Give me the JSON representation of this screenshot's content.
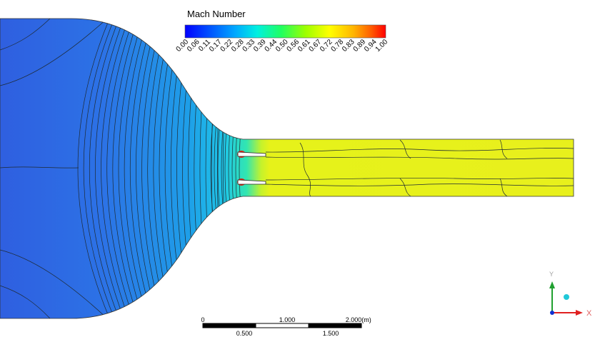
{
  "legend": {
    "title": "Mach Number",
    "ticks": [
      "0.00",
      "0.06",
      "0.11",
      "0.17",
      "0.22",
      "0.28",
      "0.33",
      "0.39",
      "0.44",
      "0.50",
      "0.56",
      "0.61",
      "0.67",
      "0.72",
      "0.78",
      "0.83",
      "0.89",
      "0.94",
      "1.00"
    ],
    "colors": [
      "#0000ff",
      "#0060ff",
      "#00b8ff",
      "#00ffd0",
      "#30ff50",
      "#a8ff00",
      "#ffff00",
      "#ffb000",
      "#ff5000",
      "#ff0000"
    ]
  },
  "scale_bar": {
    "top_labels": [
      "0",
      "1.000",
      "2.000",
      "(m)"
    ],
    "bottom_labels": [
      "0.500",
      "1.500"
    ]
  },
  "axes": {
    "x_label": "X",
    "y_label": "Y"
  },
  "colors": {
    "inlet": "#1f6fe6",
    "contraction": "#14b8e8",
    "channel": "#e6f21a",
    "contour_line": "#222222"
  }
}
